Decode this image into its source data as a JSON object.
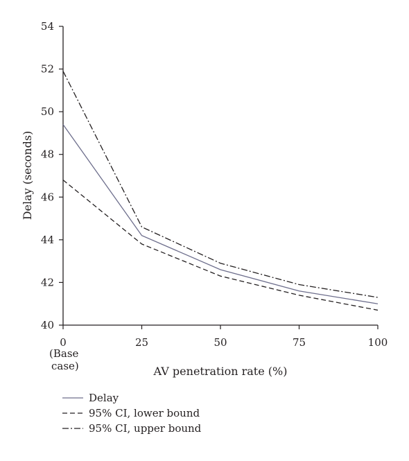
{
  "chart_data": {
    "type": "line",
    "title": "",
    "xlabel": "AV penetration rate (%)",
    "ylabel": "Delay (seconds)",
    "x": [
      0,
      25,
      50,
      75,
      100
    ],
    "x_tick_labels": [
      "0",
      "25",
      "50",
      "75",
      "100"
    ],
    "x_tick_sublabel": [
      "(Base",
      "case)"
    ],
    "y_ticks": [
      40,
      42,
      44,
      46,
      48,
      50,
      52,
      54
    ],
    "xlim": [
      0,
      100
    ],
    "ylim": [
      40,
      54
    ],
    "grid": false,
    "legend_position": "bottom-left",
    "series": [
      {
        "name": "Delay",
        "style": "solid",
        "color": "#6d6e8c",
        "values": [
          49.4,
          44.2,
          42.6,
          41.6,
          41.0
        ]
      },
      {
        "name": "95% CI, lower bound",
        "style": "dashed",
        "color": "#231f20",
        "values": [
          46.8,
          43.8,
          42.3,
          41.4,
          40.7
        ]
      },
      {
        "name": "95% CI, upper bound",
        "style": "dashdot",
        "color": "#231f20",
        "values": [
          51.9,
          44.6,
          42.9,
          41.9,
          41.3
        ]
      }
    ]
  }
}
